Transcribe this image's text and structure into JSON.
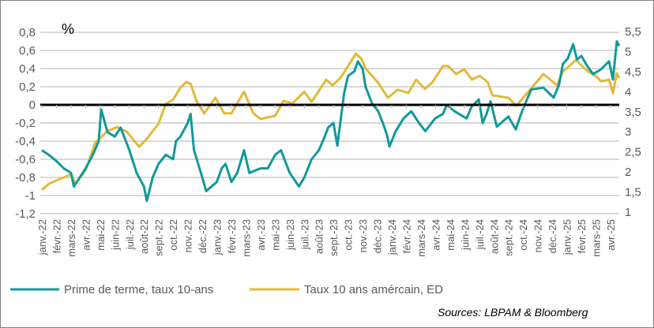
{
  "chart_data": {
    "type": "line",
    "title": "",
    "unit_label": "%",
    "source": "Sources: LBPAM & Bloomberg",
    "x_tick_labels": [
      "janv.-22",
      "févr.-22",
      "mars-22",
      "avr.-22",
      "mai-22",
      "juin-22",
      "juil.-22",
      "août-22",
      "sept.-22",
      "oct.-22",
      "nov.-22",
      "déc.-22",
      "janv.-23",
      "févr.-23",
      "mars-23",
      "avr.-23",
      "mai-23",
      "juin-23",
      "juil.-23",
      "août-23",
      "sept.-23",
      "oct.-23",
      "nov.-23",
      "déc.-23",
      "janv.-24",
      "févr.-24",
      "mars-24",
      "avr.-24",
      "mai-24",
      "juin-24",
      "juil.-24",
      "août-24",
      "sept.-24",
      "oct.-24",
      "nov.-24",
      "déc.-24",
      "janv.-25",
      "févr.-25",
      "mars-25",
      "avr.-25"
    ],
    "left_axis": {
      "ylim": [
        -1.2,
        0.8
      ],
      "ticks": [
        "0,8",
        "0,6",
        "0,4",
        "0,2",
        "0",
        "-0,2",
        "-0,4",
        "-0,6",
        "-0,8",
        "-1",
        "-1,2"
      ]
    },
    "right_axis": {
      "ylim": [
        1,
        5.5
      ],
      "ticks": [
        "5,5",
        "5",
        "4,5",
        "4",
        "3,5",
        "3",
        "2,5",
        "2",
        "1,5",
        "1"
      ]
    },
    "grid": true,
    "legend_position": "bottom",
    "colors": {
      "teal": "#12999a",
      "gold": "#e2b939",
      "zero_line": "#000000",
      "grid": "#d9d9d9"
    },
    "series": [
      {
        "name": "Prime de terme, taux 10-ans",
        "axis": "left",
        "color": "#12999a",
        "points": [
          [
            "2022-01-01",
            -0.5
          ],
          [
            "2022-01-15",
            -0.55
          ],
          [
            "2022-02-01",
            -0.62
          ],
          [
            "2022-02-16",
            -0.7
          ],
          [
            "2022-03-01",
            -0.75
          ],
          [
            "2022-03-07",
            -0.9
          ],
          [
            "2022-04-01",
            -0.7
          ],
          [
            "2022-04-16",
            -0.55
          ],
          [
            "2022-04-28",
            -0.4
          ],
          [
            "2022-05-03",
            -0.05
          ],
          [
            "2022-05-16",
            -0.3
          ],
          [
            "2022-06-01",
            -0.35
          ],
          [
            "2022-06-13",
            -0.25
          ],
          [
            "2022-07-01",
            -0.5
          ],
          [
            "2022-07-16",
            -0.75
          ],
          [
            "2022-08-01",
            -0.9
          ],
          [
            "2022-08-07",
            -1.06
          ],
          [
            "2022-08-19",
            -0.8
          ],
          [
            "2022-09-01",
            -0.65
          ],
          [
            "2022-09-16",
            -0.55
          ],
          [
            "2022-10-01",
            -0.6
          ],
          [
            "2022-10-07",
            -0.4
          ],
          [
            "2022-10-16",
            -0.35
          ],
          [
            "2022-11-01",
            -0.2
          ],
          [
            "2022-11-07",
            -0.1
          ],
          [
            "2022-11-14",
            -0.5
          ],
          [
            "2022-12-01",
            -0.8
          ],
          [
            "2022-12-09",
            -0.95
          ],
          [
            "2023-01-01",
            -0.85
          ],
          [
            "2023-01-11",
            -0.7
          ],
          [
            "2023-01-19",
            -0.65
          ],
          [
            "2023-02-01",
            -0.85
          ],
          [
            "2023-02-13",
            -0.75
          ],
          [
            "2023-02-27",
            -0.5
          ],
          [
            "2023-03-08",
            -0.75
          ],
          [
            "2023-04-01",
            -0.7
          ],
          [
            "2023-04-16",
            -0.7
          ],
          [
            "2023-05-01",
            -0.55
          ],
          [
            "2023-05-13",
            -0.5
          ],
          [
            "2023-06-01",
            -0.75
          ],
          [
            "2023-06-20",
            -0.9
          ],
          [
            "2023-07-01",
            -0.8
          ],
          [
            "2023-07-16",
            -0.6
          ],
          [
            "2023-08-01",
            -0.5
          ],
          [
            "2023-08-13",
            -0.35
          ],
          [
            "2023-08-20",
            -0.25
          ],
          [
            "2023-09-01",
            -0.2
          ],
          [
            "2023-09-09",
            -0.45
          ],
          [
            "2023-09-23",
            0.13
          ],
          [
            "2023-10-01",
            0.32
          ],
          [
            "2023-10-14",
            0.37
          ],
          [
            "2023-10-21",
            0.48
          ],
          [
            "2023-11-01",
            0.4
          ],
          [
            "2023-11-07",
            0.2
          ],
          [
            "2023-11-20",
            0.02
          ],
          [
            "2023-12-03",
            -0.07
          ],
          [
            "2023-12-14",
            -0.22
          ],
          [
            "2023-12-22",
            -0.35
          ],
          [
            "2023-12-26",
            -0.46
          ],
          [
            "2024-01-09",
            -0.29
          ],
          [
            "2024-01-25",
            -0.15
          ],
          [
            "2024-02-11",
            -0.07
          ],
          [
            "2024-02-27",
            -0.2
          ],
          [
            "2024-03-10",
            -0.29
          ],
          [
            "2024-03-30",
            -0.15
          ],
          [
            "2024-04-16",
            -0.1
          ],
          [
            "2024-04-24",
            0.0
          ],
          [
            "2024-05-10",
            -0.07
          ],
          [
            "2024-06-05",
            -0.15
          ],
          [
            "2024-06-15",
            -0.02
          ],
          [
            "2024-06-30",
            0.06
          ],
          [
            "2024-07-08",
            -0.2
          ],
          [
            "2024-07-16",
            -0.1
          ],
          [
            "2024-07-24",
            0.04
          ],
          [
            "2024-08-07",
            -0.24
          ],
          [
            "2024-09-01",
            -0.13
          ],
          [
            "2024-09-16",
            -0.27
          ],
          [
            "2024-09-29",
            -0.07
          ],
          [
            "2024-10-18",
            0.17
          ],
          [
            "2024-11-13",
            0.19
          ],
          [
            "2024-12-04",
            0.08
          ],
          [
            "2024-12-15",
            0.22
          ],
          [
            "2024-12-23",
            0.45
          ],
          [
            "2025-01-03",
            0.51
          ],
          [
            "2025-01-14",
            0.67
          ],
          [
            "2025-01-22",
            0.5
          ],
          [
            "2025-02-01",
            0.54
          ],
          [
            "2025-02-13",
            0.43
          ],
          [
            "2025-02-25",
            0.34
          ],
          [
            "2025-03-11",
            0.39
          ],
          [
            "2025-03-28",
            0.48
          ],
          [
            "2025-04-06",
            0.28
          ],
          [
            "2025-04-14",
            0.7
          ],
          [
            "2025-04-19",
            0.65
          ]
        ]
      },
      {
        "name": "Taux 10 ans amércain, ED",
        "axis": "right",
        "color": "#e2b939",
        "points": [
          [
            "2022-01-01",
            1.55
          ],
          [
            "2022-01-15",
            1.7
          ],
          [
            "2022-02-01",
            1.79
          ],
          [
            "2022-03-01",
            1.94
          ],
          [
            "2022-03-10",
            1.71
          ],
          [
            "2022-04-01",
            2.04
          ],
          [
            "2022-04-21",
            2.73
          ],
          [
            "2022-05-16",
            3.02
          ],
          [
            "2022-06-06",
            3.12
          ],
          [
            "2022-06-26",
            3.0
          ],
          [
            "2022-07-21",
            2.63
          ],
          [
            "2022-08-07",
            2.83
          ],
          [
            "2022-09-01",
            3.2
          ],
          [
            "2022-09-16",
            3.7
          ],
          [
            "2022-10-01",
            3.8
          ],
          [
            "2022-10-16",
            4.1
          ],
          [
            "2022-10-28",
            4.24
          ],
          [
            "2022-11-07",
            4.2
          ],
          [
            "2022-11-19",
            3.77
          ],
          [
            "2022-12-05",
            3.46
          ],
          [
            "2022-12-28",
            3.85
          ],
          [
            "2023-01-16",
            3.46
          ],
          [
            "2023-02-01",
            3.46
          ],
          [
            "2023-02-27",
            4.0
          ],
          [
            "2023-03-16",
            3.46
          ],
          [
            "2023-04-01",
            3.32
          ],
          [
            "2023-05-01",
            3.4
          ],
          [
            "2023-05-18",
            3.77
          ],
          [
            "2023-06-07",
            3.71
          ],
          [
            "2023-07-01",
            4.0
          ],
          [
            "2023-07-16",
            3.75
          ],
          [
            "2023-08-16",
            4.3
          ],
          [
            "2023-08-29",
            4.16
          ],
          [
            "2023-09-15",
            4.34
          ],
          [
            "2023-09-27",
            4.56
          ],
          [
            "2023-10-17",
            4.95
          ],
          [
            "2023-10-28",
            4.83
          ],
          [
            "2023-11-08",
            4.56
          ],
          [
            "2023-12-02",
            4.24
          ],
          [
            "2023-12-23",
            3.85
          ],
          [
            "2024-01-13",
            4.05
          ],
          [
            "2024-02-05",
            3.97
          ],
          [
            "2024-02-21",
            4.3
          ],
          [
            "2024-03-09",
            4.07
          ],
          [
            "2024-03-25",
            4.24
          ],
          [
            "2024-04-16",
            4.64
          ],
          [
            "2024-04-27",
            4.64
          ],
          [
            "2024-05-13",
            4.44
          ],
          [
            "2024-05-30",
            4.56
          ],
          [
            "2024-06-16",
            4.3
          ],
          [
            "2024-07-02",
            4.4
          ],
          [
            "2024-07-18",
            4.24
          ],
          [
            "2024-07-28",
            3.91
          ],
          [
            "2024-09-01",
            3.85
          ],
          [
            "2024-09-17",
            3.65
          ],
          [
            "2024-10-10",
            3.97
          ],
          [
            "2024-11-13",
            4.44
          ],
          [
            "2024-12-11",
            4.16
          ],
          [
            "2024-12-23",
            4.5
          ],
          [
            "2025-01-20",
            4.79
          ],
          [
            "2025-02-11",
            4.54
          ],
          [
            "2025-03-04",
            4.36
          ],
          [
            "2025-03-11",
            4.26
          ],
          [
            "2025-03-28",
            4.3
          ],
          [
            "2025-04-06",
            3.97
          ],
          [
            "2025-04-14",
            4.46
          ],
          [
            "2025-04-19",
            4.34
          ]
        ]
      }
    ]
  }
}
